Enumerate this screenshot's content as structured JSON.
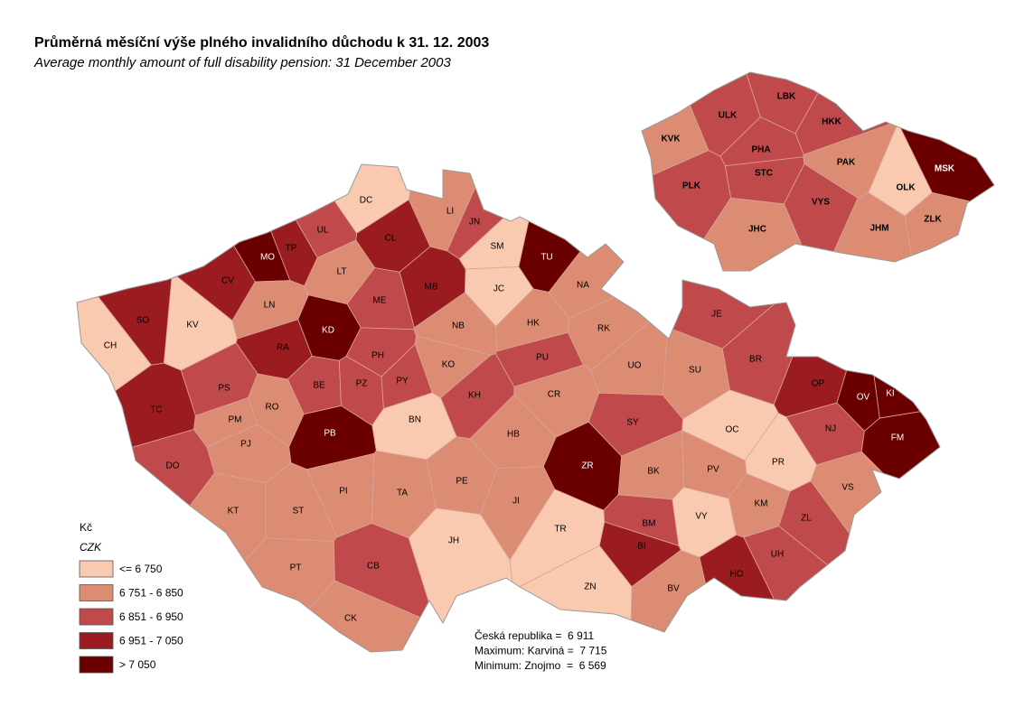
{
  "header": {
    "title": "Průměrná měsíční výše plného invalidního důchodu k 31. 12. 2003",
    "subtitle": "Average monthly amount of full disability pension: 31 December 2003"
  },
  "legend": {
    "unit": "Kč",
    "unit_en": "CZK",
    "items": [
      {
        "label": "<= 6 750",
        "color": "#f9c9b0"
      },
      {
        "label": "6 751 - 6 850",
        "color": "#dc8c72"
      },
      {
        "label": "6 851 - 6 950",
        "color": "#c0494b"
      },
      {
        "label": "6 951 - 7 050",
        "color": "#9b1c20"
      },
      {
        "label": "> 7 050",
        "color": "#6b0000"
      }
    ]
  },
  "districts": [
    {
      "code": "DC",
      "color": "#f9c9b0"
    },
    {
      "code": "LI",
      "color": "#dc8c72"
    },
    {
      "code": "JN",
      "color": "#c0494b"
    },
    {
      "code": "CL",
      "color": "#9b1c20"
    },
    {
      "code": "UL",
      "color": "#c0494b"
    },
    {
      "code": "TP",
      "color": "#9b1c20"
    },
    {
      "code": "MO",
      "color": "#6b0000"
    },
    {
      "code": "SM",
      "color": "#f9c9b0"
    },
    {
      "code": "TU",
      "color": "#6b0000"
    },
    {
      "code": "CV",
      "color": "#9b1c20"
    },
    {
      "code": "LT",
      "color": "#dc8c72"
    },
    {
      "code": "NA",
      "color": "#dc8c72"
    },
    {
      "code": "JC",
      "color": "#f9c9b0"
    },
    {
      "code": "MB",
      "color": "#9b1c20"
    },
    {
      "code": "ME",
      "color": "#c0494b"
    },
    {
      "code": "SO",
      "color": "#9b1c20"
    },
    {
      "code": "KV",
      "color": "#f9c9b0"
    },
    {
      "code": "LN",
      "color": "#dc8c72"
    },
    {
      "code": "KD",
      "color": "#6b0000"
    },
    {
      "code": "CH",
      "color": "#f9c9b0"
    },
    {
      "code": "NB",
      "color": "#dc8c72"
    },
    {
      "code": "HK",
      "color": "#dc8c72"
    },
    {
      "code": "RK",
      "color": "#dc8c72"
    },
    {
      "code": "JE",
      "color": "#c0494b"
    },
    {
      "code": "RA",
      "color": "#9b1c20"
    },
    {
      "code": "PH",
      "color": "#c0494b"
    },
    {
      "code": "PU",
      "color": "#c0494b"
    },
    {
      "code": "UO",
      "color": "#dc8c72"
    },
    {
      "code": "SU",
      "color": "#dc8c72"
    },
    {
      "code": "BR",
      "color": "#c0494b"
    },
    {
      "code": "KO",
      "color": "#dc8c72"
    },
    {
      "code": "PS",
      "color": "#c0494b"
    },
    {
      "code": "BE",
      "color": "#c0494b"
    },
    {
      "code": "PZ",
      "color": "#c0494b"
    },
    {
      "code": "PY",
      "color": "#c0494b"
    },
    {
      "code": "KH",
      "color": "#c0494b"
    },
    {
      "code": "CR",
      "color": "#dc8c72"
    },
    {
      "code": "OP",
      "color": "#9b1c20"
    },
    {
      "code": "OV",
      "color": "#6b0000"
    },
    {
      "code": "KI",
      "color": "#6b0000"
    },
    {
      "code": "TC",
      "color": "#9b1c20"
    },
    {
      "code": "RO",
      "color": "#dc8c72"
    },
    {
      "code": "SY",
      "color": "#c0494b"
    },
    {
      "code": "NJ",
      "color": "#c0494b"
    },
    {
      "code": "BN",
      "color": "#f9c9b0"
    },
    {
      "code": "PM",
      "color": "#dc8c72"
    },
    {
      "code": "PB",
      "color": "#6b0000"
    },
    {
      "code": "FM",
      "color": "#6b0000"
    },
    {
      "code": "OC",
      "color": "#f9c9b0"
    },
    {
      "code": "PJ",
      "color": "#dc8c72"
    },
    {
      "code": "HB",
      "color": "#dc8c72"
    },
    {
      "code": "PR",
      "color": "#f9c9b0"
    },
    {
      "code": "DO",
      "color": "#c0494b"
    },
    {
      "code": "ZR",
      "color": "#6b0000"
    },
    {
      "code": "BK",
      "color": "#dc8c72"
    },
    {
      "code": "PV",
      "color": "#dc8c72"
    },
    {
      "code": "VS",
      "color": "#dc8c72"
    },
    {
      "code": "PI",
      "color": "#dc8c72"
    },
    {
      "code": "TA",
      "color": "#dc8c72"
    },
    {
      "code": "PE",
      "color": "#dc8c72"
    },
    {
      "code": "KM",
      "color": "#dc8c72"
    },
    {
      "code": "JI",
      "color": "#dc8c72"
    },
    {
      "code": "VY",
      "color": "#f9c9b0"
    },
    {
      "code": "KT",
      "color": "#dc8c72"
    },
    {
      "code": "ST",
      "color": "#dc8c72"
    },
    {
      "code": "BM",
      "color": "#c0494b"
    },
    {
      "code": "BI",
      "color": "#9b1c20"
    },
    {
      "code": "ZL",
      "color": "#c0494b"
    },
    {
      "code": "TR",
      "color": "#f9c9b0"
    },
    {
      "code": "JH",
      "color": "#f9c9b0"
    },
    {
      "code": "UH",
      "color": "#c0494b"
    },
    {
      "code": "PT",
      "color": "#dc8c72"
    },
    {
      "code": "CB",
      "color": "#c0494b"
    },
    {
      "code": "HO",
      "color": "#9b1c20"
    },
    {
      "code": "ZN",
      "color": "#f9c9b0"
    },
    {
      "code": "BV",
      "color": "#dc8c72"
    },
    {
      "code": "CK",
      "color": "#dc8c72"
    }
  ],
  "regions": [
    {
      "code": "KVK",
      "color": "#dc8c72"
    },
    {
      "code": "ULK",
      "color": "#c0494b"
    },
    {
      "code": "LBK",
      "color": "#c0494b"
    },
    {
      "code": "HKK",
      "color": "#c0494b"
    },
    {
      "code": "PHA",
      "color": "#c0494b"
    },
    {
      "code": "STC",
      "color": "#c0494b"
    },
    {
      "code": "PAK",
      "color": "#dc8c72"
    },
    {
      "code": "MSK",
      "color": "#6b0000"
    },
    {
      "code": "PLK",
      "color": "#c0494b"
    },
    {
      "code": "OLK",
      "color": "#f9c9b0"
    },
    {
      "code": "VYS",
      "color": "#c0494b"
    },
    {
      "code": "ZLK",
      "color": "#dc8c72"
    },
    {
      "code": "JHC",
      "color": "#dc8c72"
    },
    {
      "code": "JHM",
      "color": "#dc8c72"
    }
  ],
  "summary": [
    "Česká republika =  6 911",
    "Maximum: Karviná =  7 715",
    "Minimum: Znojmo  =  6 569"
  ]
}
